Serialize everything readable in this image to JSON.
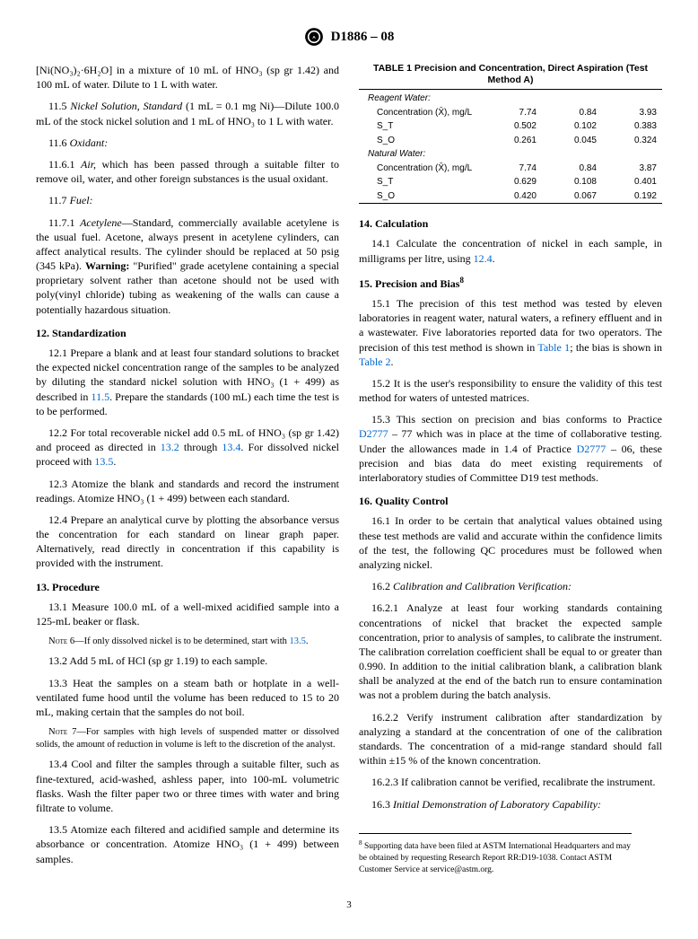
{
  "header": {
    "designation": "D1886 – 08"
  },
  "left": {
    "p1": "[Ni(NO₃)₂·6H₂O] in a mixture of 10 mL of HNO₃ (sp gr 1.42) and 100 mL of water. Dilute to 1 L with water.",
    "p11_5a": "11.5 ",
    "p11_5_it": "Nickel Solution, Standard ",
    "p11_5b": "(1 mL = 0.1 mg Ni)—Dilute 100.0 mL of the stock nickel solution and 1 mL of HNO₃ to 1 L with water.",
    "p11_6a": "11.6 ",
    "p11_6_it": "Oxidant:",
    "p11_6_1a": "11.6.1 ",
    "p11_6_1_it": "Air,",
    "p11_6_1b": " which has been passed through a suitable filter to remove oil, water, and other foreign substances is the usual oxidant.",
    "p11_7a": "11.7 ",
    "p11_7_it": "Fuel:",
    "p11_7_1a": "11.7.1 ",
    "p11_7_1_it": "Acetylene",
    "p11_7_1b": "—Standard, commercially available acetylene is the usual fuel. Acetone, always present in acetylene cylinders, can affect analytical results. The cylinder should be replaced at 50 psig (345 kPa). ",
    "p11_7_1_warn": "Warning:",
    "p11_7_1c": " \"Purified\" grade acetylene containing a special proprietary solvent rather than acetone should not be used with poly(vinyl chloride) tubing as weakening of the walls can cause a potentially hazardous situation.",
    "s12": "12. Standardization",
    "p12_1a": "12.1 Prepare a blank and at least four standard solutions to bracket the expected nickel concentration range of the samples to be analyzed by diluting the standard nickel solution with HNO₃ (1 + 499) as described in ",
    "p12_1_link": "11.5",
    "p12_1b": ". Prepare the standards (100 mL) each time the test is to be performed.",
    "p12_2a": "12.2 For total recoverable nickel add 0.5 mL of HNO₃ (sp gr 1.42) and proceed as directed in ",
    "p12_2_link1": "13.2",
    "p12_2b": " through ",
    "p12_2_link2": "13.4",
    "p12_2c": ". For dissolved nickel proceed with ",
    "p12_2_link3": "13.5",
    "p12_2d": ".",
    "p12_3": "12.3 Atomize the blank and standards and record the instrument readings. Atomize HNO₃ (1 + 499) between each standard.",
    "p12_4": "12.4 Prepare an analytical curve by plotting the absorbance versus the concentration for each standard on linear graph paper. Alternatively, read directly in concentration if this capability is provided with the instrument.",
    "s13": "13. Procedure",
    "p13_1": "13.1 Measure 100.0 mL of a well-mixed acidified sample into a 125-mL beaker or flask.",
    "note6a": "Note",
    "note6b": " 6—If only dissolved nickel is to be determined, start with ",
    "note6_link": "13.5",
    "note6c": ".",
    "p13_2": "13.2 Add 5 mL of HCl (sp gr 1.19) to each sample.",
    "p13_3": "13.3 Heat the samples on a steam bath or hotplate in a well-ventilated fume hood until the volume has been reduced to 15 to 20 mL, making certain that the samples do not boil.",
    "note7a": "Note",
    "note7b": " 7—For samples with high levels of suspended matter or dissolved solids, the amount of reduction in volume is left to the discretion of the analyst.",
    "p13_4": "13.4 Cool and filter the samples through a suitable filter, such as fine-textured, acid-washed, ashless paper, into 100-mL volumetric flasks. Wash the filter paper two or three times with water and bring filtrate to volume.",
    "p13_5": "13.5 Atomize each filtered and acidified sample and determine its absorbance or concentration. Atomize HNO₃ (1 + 499) between samples."
  },
  "table1": {
    "caption": "TABLE 1 Precision and Concentration, Direct Aspiration (Test Method A)",
    "rows": [
      {
        "label": "Reagent Water:",
        "italic": true,
        "v": [
          "",
          "",
          ""
        ]
      },
      {
        "label": "Concentration (X̄), mg/L",
        "sub": true,
        "v": [
          "7.74",
          "0.84",
          "3.93"
        ]
      },
      {
        "label": "S_T",
        "sub": true,
        "v": [
          "0.502",
          "0.102",
          "0.383"
        ]
      },
      {
        "label": "S_O",
        "sub": true,
        "v": [
          "0.261",
          "0.045",
          "0.324"
        ]
      },
      {
        "label": "Natural Water:",
        "italic": true,
        "v": [
          "",
          "",
          ""
        ]
      },
      {
        "label": "Concentration (X̄), mg/L",
        "sub": true,
        "v": [
          "7.74",
          "0.84",
          "3.87"
        ]
      },
      {
        "label": "S_T",
        "sub": true,
        "v": [
          "0.629",
          "0.108",
          "0.401"
        ]
      },
      {
        "label": "S_O",
        "sub": true,
        "v": [
          "0.420",
          "0.067",
          "0.192"
        ]
      }
    ]
  },
  "right": {
    "s14": "14. Calculation",
    "p14_1a": "14.1 Calculate the concentration of nickel in each sample, in milligrams per litre, using ",
    "p14_1_link": "12.4",
    "p14_1b": ".",
    "s15": "15. Precision and Bias",
    "s15_sup": "8",
    "p15_1a": "15.1 The precision of this test method was tested by eleven laboratories in reagent water, natural waters, a refinery effluent and in a wastewater. Five laboratories reported data for two operators. The precision of this test method is shown in ",
    "p15_1_link1": "Table 1",
    "p15_1b": "; the bias is shown in ",
    "p15_1_link2": "Table 2",
    "p15_1c": ".",
    "p15_2": "15.2 It is the user's responsibility to ensure the validity of this test method for waters of untested matrices.",
    "p15_3a": "15.3 This section on precision and bias conforms to Practice ",
    "p15_3_link1": "D2777",
    "p15_3b": " – 77 which was in place at the time of collaborative testing. Under the allowances made in 1.4 of Practice ",
    "p15_3_link2": "D2777",
    "p15_3c": " – 06, these precision and bias data do meet existing requirements of interlaboratory studies of Committee D19 test methods.",
    "s16": "16. Quality Control",
    "p16_1": "16.1 In order to be certain that analytical values obtained using these test methods are valid and accurate within the confidence limits of the test, the following QC procedures must be followed when analyzing nickel.",
    "p16_2a": "16.2 ",
    "p16_2_it": "Calibration and Calibration Verification:",
    "p16_2_1": "16.2.1 Analyze at least four working standards containing concentrations of nickel that bracket the expected sample concentration, prior to analysis of samples, to calibrate the instrument. The calibration correlation coefficient shall be equal to or greater than 0.990. In addition to the initial calibration blank, a calibration blank shall be analyzed at the end of the batch run to ensure contamination was not a problem during the batch analysis.",
    "p16_2_2": "16.2.2 Verify instrument calibration after standardization by analyzing a standard at the concentration of one of the calibration standards. The concentration of a mid-range standard should fall within ±15 % of the known concentration.",
    "p16_2_3": "16.2.3 If calibration cannot be verified, recalibrate the instrument.",
    "p16_3a": "16.3 ",
    "p16_3_it": "Initial Demonstration of Laboratory Capability:",
    "footnote_sup": "8",
    "footnote": " Supporting data have been filed at ASTM International Headquarters and may be obtained by requesting Research Report RR:D19-1038. Contact ASTM Customer Service at service@astm.org."
  },
  "page": "3"
}
